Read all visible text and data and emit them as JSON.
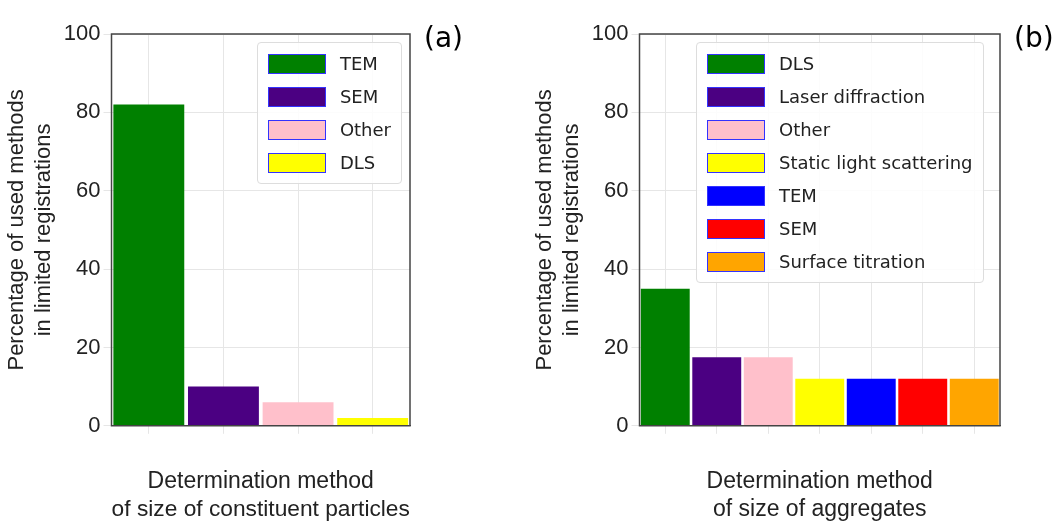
{
  "chart_data": [
    {
      "type": "bar",
      "categories": [
        null,
        null,
        null,
        null
      ],
      "series": [
        {
          "name": "TEM",
          "color": "#008000",
          "values": [
            82,
            null,
            null,
            null
          ]
        },
        {
          "name": "SEM",
          "color": "#4b0082",
          "values": [
            null,
            10,
            null,
            null
          ]
        },
        {
          "name": "Other",
          "color": "#ffc0cb",
          "values": [
            null,
            null,
            6,
            null
          ]
        },
        {
          "name": "DLS",
          "color": "#ffff00",
          "values": [
            null,
            null,
            null,
            2
          ]
        }
      ],
      "ylim": [
        0,
        100
      ],
      "yticks": [
        0,
        20,
        40,
        60,
        80,
        100
      ],
      "ylabel": "Percentage of used methods\nin limited registrations",
      "xlabel": "Determination method\nof size of constituent particles",
      "annotations": [
        "(a)"
      ],
      "grid": true,
      "legend": "top right"
    },
    {
      "type": "bar",
      "categories": [
        null,
        null,
        null,
        null,
        null,
        null,
        null
      ],
      "series": [
        {
          "name": "DLS",
          "color": "#008000",
          "values": [
            35,
            null,
            null,
            null,
            null,
            null,
            null
          ]
        },
        {
          "name": "Laser diffraction",
          "color": "#4b0082",
          "values": [
            null,
            17.5,
            null,
            null,
            null,
            null,
            null
          ]
        },
        {
          "name": "Other",
          "color": "#ffc0cb",
          "values": [
            null,
            null,
            17.5,
            null,
            null,
            null,
            null
          ]
        },
        {
          "name": "Static light scattering",
          "color": "#ffff00",
          "values": [
            null,
            null,
            null,
            12,
            null,
            null,
            null
          ]
        },
        {
          "name": "TEM",
          "color": "#0000ff",
          "values": [
            null,
            null,
            null,
            null,
            12,
            null,
            null
          ]
        },
        {
          "name": "SEM",
          "color": "#ff0000",
          "values": [
            null,
            null,
            null,
            null,
            null,
            12,
            null
          ]
        },
        {
          "name": "Surface titration",
          "color": "#ffa500",
          "values": [
            null,
            null,
            null,
            null,
            null,
            null,
            12
          ]
        }
      ],
      "ylim": [
        0,
        100
      ],
      "yticks": [
        0,
        20,
        40,
        60,
        80,
        100
      ],
      "ylabel": "Percentage of used methods\nin limited registrations",
      "xlabel": "Determination method\nof size of aggregates",
      "annotations": [
        "(b)"
      ],
      "grid": true,
      "legend": "top"
    }
  ]
}
